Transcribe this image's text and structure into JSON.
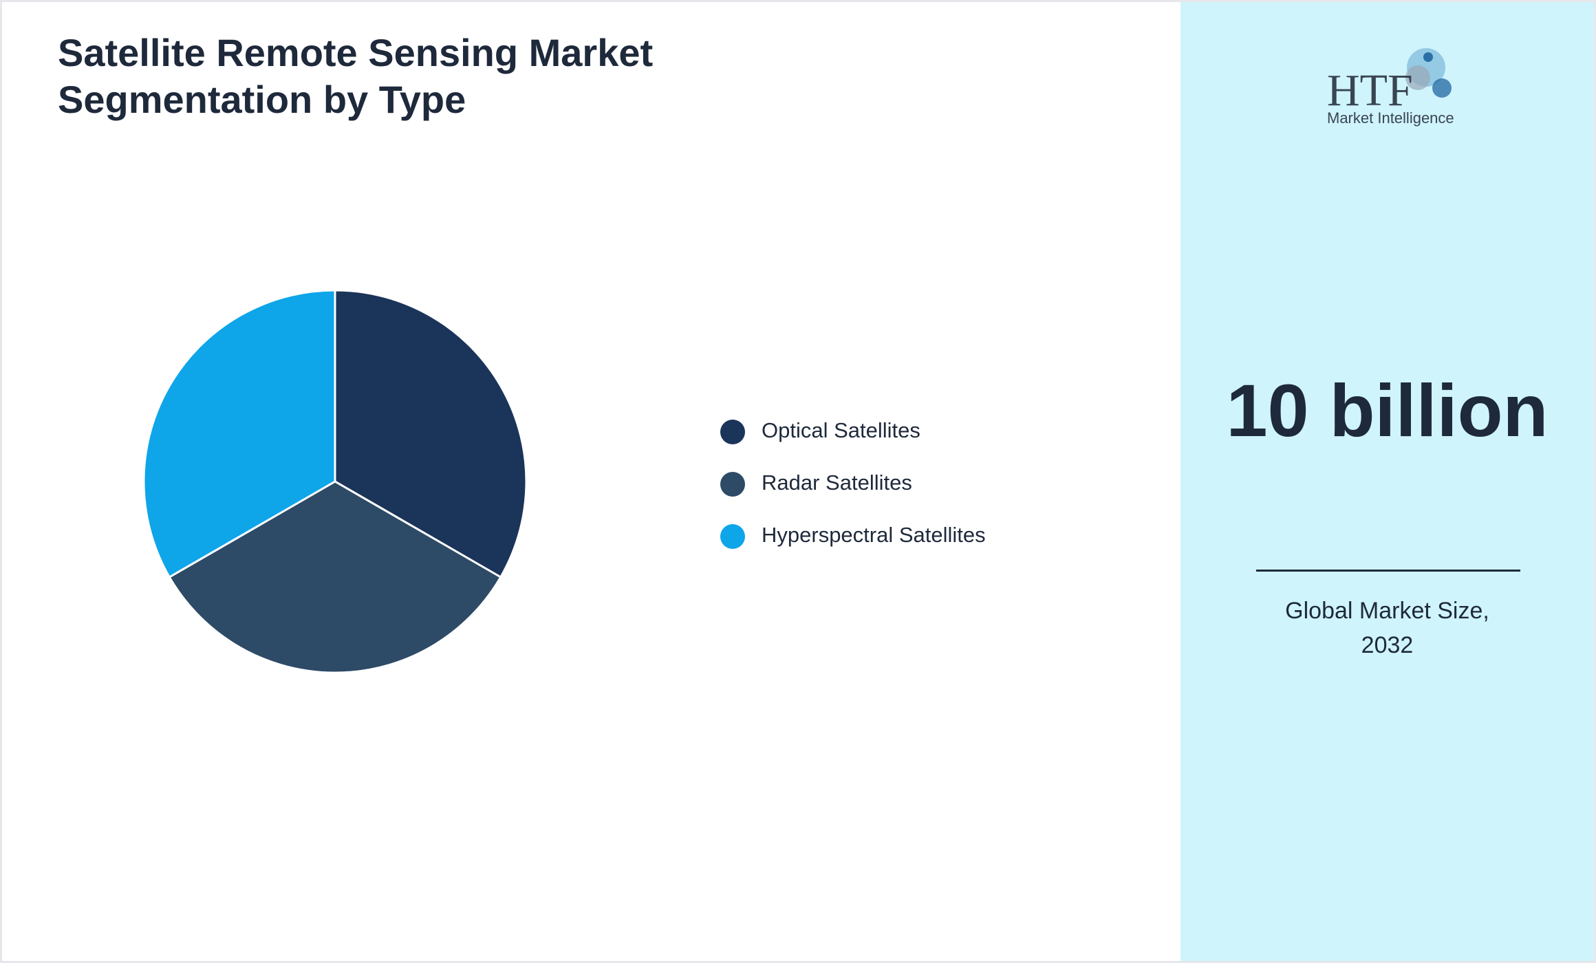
{
  "chart_data": {
    "type": "pie",
    "title": "Satellite Remote Sensing Market Segmentation by Type",
    "categories": [
      "Optical Satellites",
      "Radar Satellites",
      "Hyperspectral Satellites"
    ],
    "values": [
      33.3,
      33.3,
      33.3
    ],
    "colors": [
      "#1b3459",
      "#2d4a66",
      "#0ea5e9"
    ]
  },
  "market_size": {
    "value": "10 billion",
    "label": "Global Market Size, 2032"
  },
  "logo": {
    "mark": "HTF",
    "name": "Market Intelligence"
  }
}
